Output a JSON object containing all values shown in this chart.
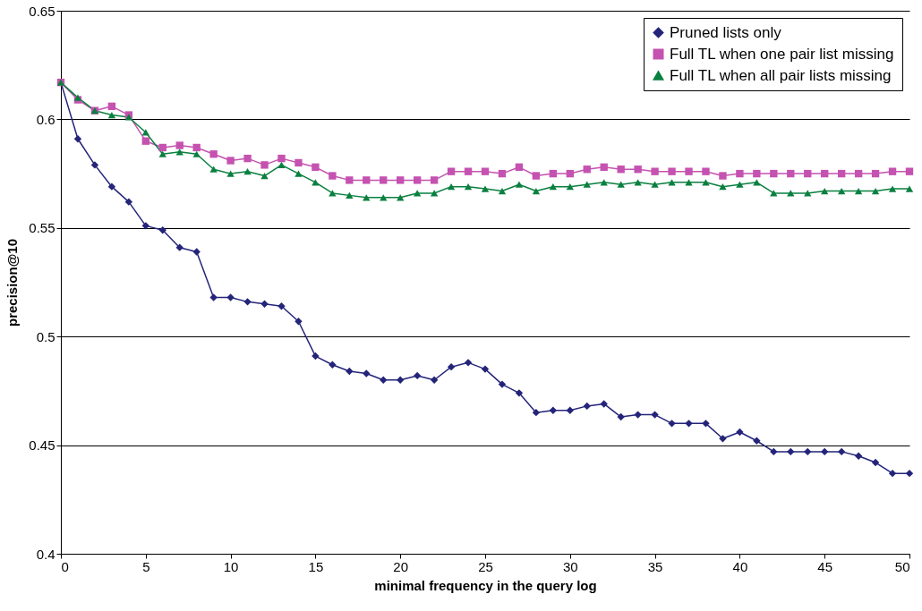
{
  "chart_data": {
    "type": "line",
    "xlabel": "minimal frequency in the query log",
    "ylabel": "precision@10",
    "x": [
      0,
      1,
      2,
      3,
      4,
      5,
      6,
      7,
      8,
      9,
      10,
      11,
      12,
      13,
      14,
      15,
      16,
      17,
      18,
      19,
      20,
      21,
      22,
      23,
      24,
      25,
      26,
      27,
      28,
      29,
      30,
      31,
      32,
      33,
      34,
      35,
      36,
      37,
      38,
      39,
      40,
      41,
      42,
      43,
      44,
      45,
      46,
      47,
      48,
      49,
      50
    ],
    "xlim": [
      0,
      50
    ],
    "xticks": [
      0,
      5,
      10,
      15,
      20,
      25,
      30,
      35,
      40,
      45,
      50
    ],
    "ylim": [
      0.4,
      0.65
    ],
    "yticks": [
      0.4,
      0.45,
      0.5,
      0.55,
      0.6,
      0.65
    ],
    "grid": "y",
    "legend": "top right",
    "series": [
      {
        "name": "Pruned lists only",
        "color": "#24247a",
        "marker": "diamond",
        "values": [
          0.617,
          0.591,
          0.579,
          0.569,
          0.562,
          0.551,
          0.549,
          0.541,
          0.539,
          0.518,
          0.518,
          0.516,
          0.515,
          0.514,
          0.507,
          0.491,
          0.487,
          0.484,
          0.483,
          0.48,
          0.48,
          0.482,
          0.48,
          0.486,
          0.488,
          0.485,
          0.478,
          0.474,
          0.465,
          0.466,
          0.466,
          0.468,
          0.469,
          0.463,
          0.464,
          0.464,
          0.46,
          0.46,
          0.46,
          0.453,
          0.456,
          0.452,
          0.447,
          0.447,
          0.447,
          0.447,
          0.447,
          0.445,
          0.442,
          0.437,
          0.437
        ]
      },
      {
        "name": "Full TL when one pair list missing",
        "color": "#c552b0",
        "marker": "square",
        "values": [
          0.617,
          0.609,
          0.604,
          0.606,
          0.602,
          0.59,
          0.587,
          0.588,
          0.587,
          0.584,
          0.581,
          0.582,
          0.579,
          0.582,
          0.58,
          0.578,
          0.574,
          0.572,
          0.572,
          0.572,
          0.572,
          0.572,
          0.572,
          0.576,
          0.576,
          0.576,
          0.575,
          0.578,
          0.574,
          0.575,
          0.575,
          0.577,
          0.578,
          0.577,
          0.577,
          0.576,
          0.576,
          0.576,
          0.576,
          0.574,
          0.575,
          0.575,
          0.575,
          0.575,
          0.575,
          0.575,
          0.575,
          0.575,
          0.575,
          0.576,
          0.576
        ]
      },
      {
        "name": "Full TL when all pair lists missing",
        "color": "#0a8040",
        "marker": "triangle",
        "values": [
          0.617,
          0.61,
          0.604,
          0.602,
          0.601,
          0.594,
          0.584,
          0.585,
          0.584,
          0.577,
          0.575,
          0.576,
          0.574,
          0.579,
          0.575,
          0.571,
          0.566,
          0.565,
          0.564,
          0.564,
          0.564,
          0.566,
          0.566,
          0.569,
          0.569,
          0.568,
          0.567,
          0.57,
          0.567,
          0.569,
          0.569,
          0.57,
          0.571,
          0.57,
          0.571,
          0.57,
          0.571,
          0.571,
          0.571,
          0.569,
          0.57,
          0.571,
          0.566,
          0.566,
          0.566,
          0.567,
          0.567,
          0.567,
          0.567,
          0.568,
          0.568
        ]
      }
    ]
  }
}
